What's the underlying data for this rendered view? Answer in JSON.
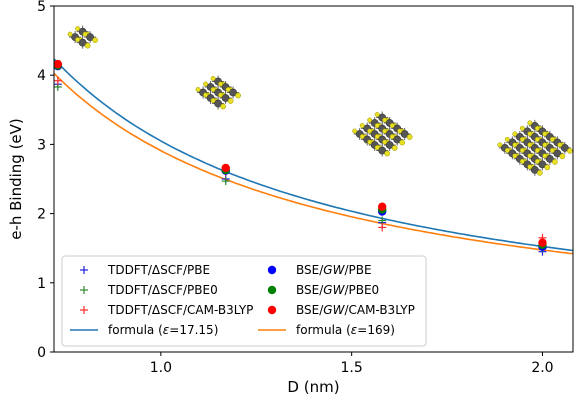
{
  "chart_data": {
    "type": "scatter",
    "xlabel": "D (nm)",
    "ylabel": "e-h Binding (eV)",
    "xlim": [
      0.72,
      2.08
    ],
    "ylim": [
      0,
      5
    ],
    "xticks": [
      1.0,
      1.5,
      2.0
    ],
    "xtick_labels": [
      "1.0",
      "1.5",
      "2.0"
    ],
    "yticks": [
      0,
      1,
      2,
      3,
      4,
      5
    ],
    "ytick_labels": [
      "0",
      "1",
      "2",
      "3",
      "4",
      "5"
    ],
    "grid": false,
    "legend_position": "lower-left",
    "series": [
      {
        "name": "TDDFT/ΔSCF/PBE",
        "marker": "plus",
        "color": "#1f1fdf",
        "x": [
          0.73,
          1.17,
          1.58,
          2.0
        ],
        "y": [
          3.87,
          2.5,
          1.87,
          1.45
        ]
      },
      {
        "name": "TDDFT/ΔSCF/PBE0",
        "marker": "plus",
        "color": "#2e8b2e",
        "x": [
          0.73,
          1.17,
          1.58,
          2.0
        ],
        "y": [
          3.83,
          2.47,
          1.9,
          1.5
        ]
      },
      {
        "name": "TDDFT/ΔSCF/CAM-B3LYP",
        "marker": "plus",
        "color": "#ff2a2a",
        "x": [
          0.73,
          1.17,
          1.58,
          2.0
        ],
        "y": [
          3.92,
          2.6,
          1.8,
          1.65
        ]
      },
      {
        "name": "BSE/GW/PBE",
        "marker": "circle",
        "color": "#0000ff",
        "x": [
          0.73,
          1.17,
          1.58,
          2.0
        ],
        "y": [
          4.13,
          2.62,
          2.03,
          1.52
        ]
      },
      {
        "name": "BSE/GW/PBE0",
        "marker": "circle",
        "color": "#008000",
        "x": [
          0.73,
          1.17,
          1.58,
          2.0
        ],
        "y": [
          4.14,
          2.63,
          2.06,
          1.55
        ]
      },
      {
        "name": "BSE/GW/CAM-B3LYP",
        "marker": "circle",
        "color": "#ff0000",
        "x": [
          0.73,
          1.17,
          1.58,
          2.0
        ],
        "y": [
          4.16,
          2.66,
          2.1,
          1.58
        ]
      },
      {
        "name": "formula (ε=17.15)",
        "type": "line",
        "color": "#1f77b4",
        "formula": {
          "a": 3.05,
          "b": 0.0
        }
      },
      {
        "name": "formula (ε=169)",
        "type": "line",
        "color": "#ff7f0e",
        "formula": {
          "a": 2.87,
          "b": 0.04
        }
      }
    ],
    "legend": {
      "rows": [
        [
          {
            "series": 0,
            "text": "TDDFT/ΔSCF/PBE"
          },
          {
            "series": 3,
            "pre": "BSE/",
            "ital": "GW",
            "post": "/PBE"
          }
        ],
        [
          {
            "series": 1,
            "text": "TDDFT/ΔSCF/PBE0"
          },
          {
            "series": 4,
            "pre": "BSE/",
            "ital": "GW",
            "post": "/PBE0"
          }
        ],
        [
          {
            "series": 2,
            "text": "TDDFT/ΔSCF/CAM-B3LYP"
          },
          {
            "series": 5,
            "pre": "BSE/",
            "ital": "GW",
            "post": "/CAM-B3LYP"
          }
        ],
        [
          {
            "series": 6,
            "pre": "formula (",
            "ital": "ε",
            "post": "=17.15)"
          },
          {
            "series": 7,
            "pre": "formula (",
            "ital": "ε",
            "post": "=169)"
          }
        ]
      ]
    },
    "nanocrystal_images": [
      {
        "name": "nanocrystal-small-icon",
        "x": 0.795,
        "y": 4.55,
        "size": 1
      },
      {
        "name": "nanocrystal-medium-icon",
        "x": 1.15,
        "y": 3.75,
        "size": 2
      },
      {
        "name": "nanocrystal-large-icon",
        "x": 1.58,
        "y": 3.15,
        "size": 3
      },
      {
        "name": "nanocrystal-xlarge-icon",
        "x": 1.98,
        "y": 2.95,
        "size": 4
      }
    ]
  }
}
